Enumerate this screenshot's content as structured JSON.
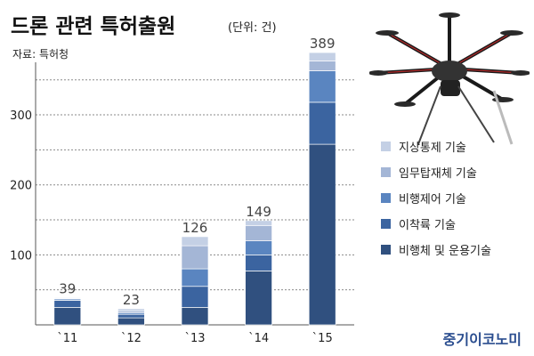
{
  "header": {
    "title": "드론 관련 특허출원",
    "unit": "(단위: 건)",
    "source": "자료: 특허청"
  },
  "brand": {
    "logo": "중기이코노미"
  },
  "colors": {
    "stack": [
      "#30507f",
      "#3b64a0",
      "#5a85c0",
      "#a4b6d6",
      "#c4d0e5"
    ]
  },
  "chart_data": {
    "type": "bar",
    "stacked": true,
    "categories": [
      "`11",
      "`12",
      "`13",
      "`14",
      "`15"
    ],
    "totals": [
      39,
      23,
      126,
      149,
      389
    ],
    "ylim": [
      0,
      370
    ],
    "yticks": [
      100,
      200,
      300
    ],
    "grid": true,
    "legend_position": "right",
    "series": [
      {
        "name": "비행체 및 운용기술",
        "values": [
          25,
          10,
          25,
          77,
          258
        ]
      },
      {
        "name": "이착륙 기술",
        "values": [
          10,
          5,
          30,
          23,
          60
        ]
      },
      {
        "name": "비행제어 기술",
        "values": [
          2,
          2,
          25,
          20,
          45
        ]
      },
      {
        "name": "임무탑재체 기술",
        "values": [
          1,
          3,
          33,
          22,
          14
        ]
      },
      {
        "name": "지상통제 기술",
        "values": [
          1,
          3,
          13,
          7,
          12
        ]
      }
    ]
  }
}
